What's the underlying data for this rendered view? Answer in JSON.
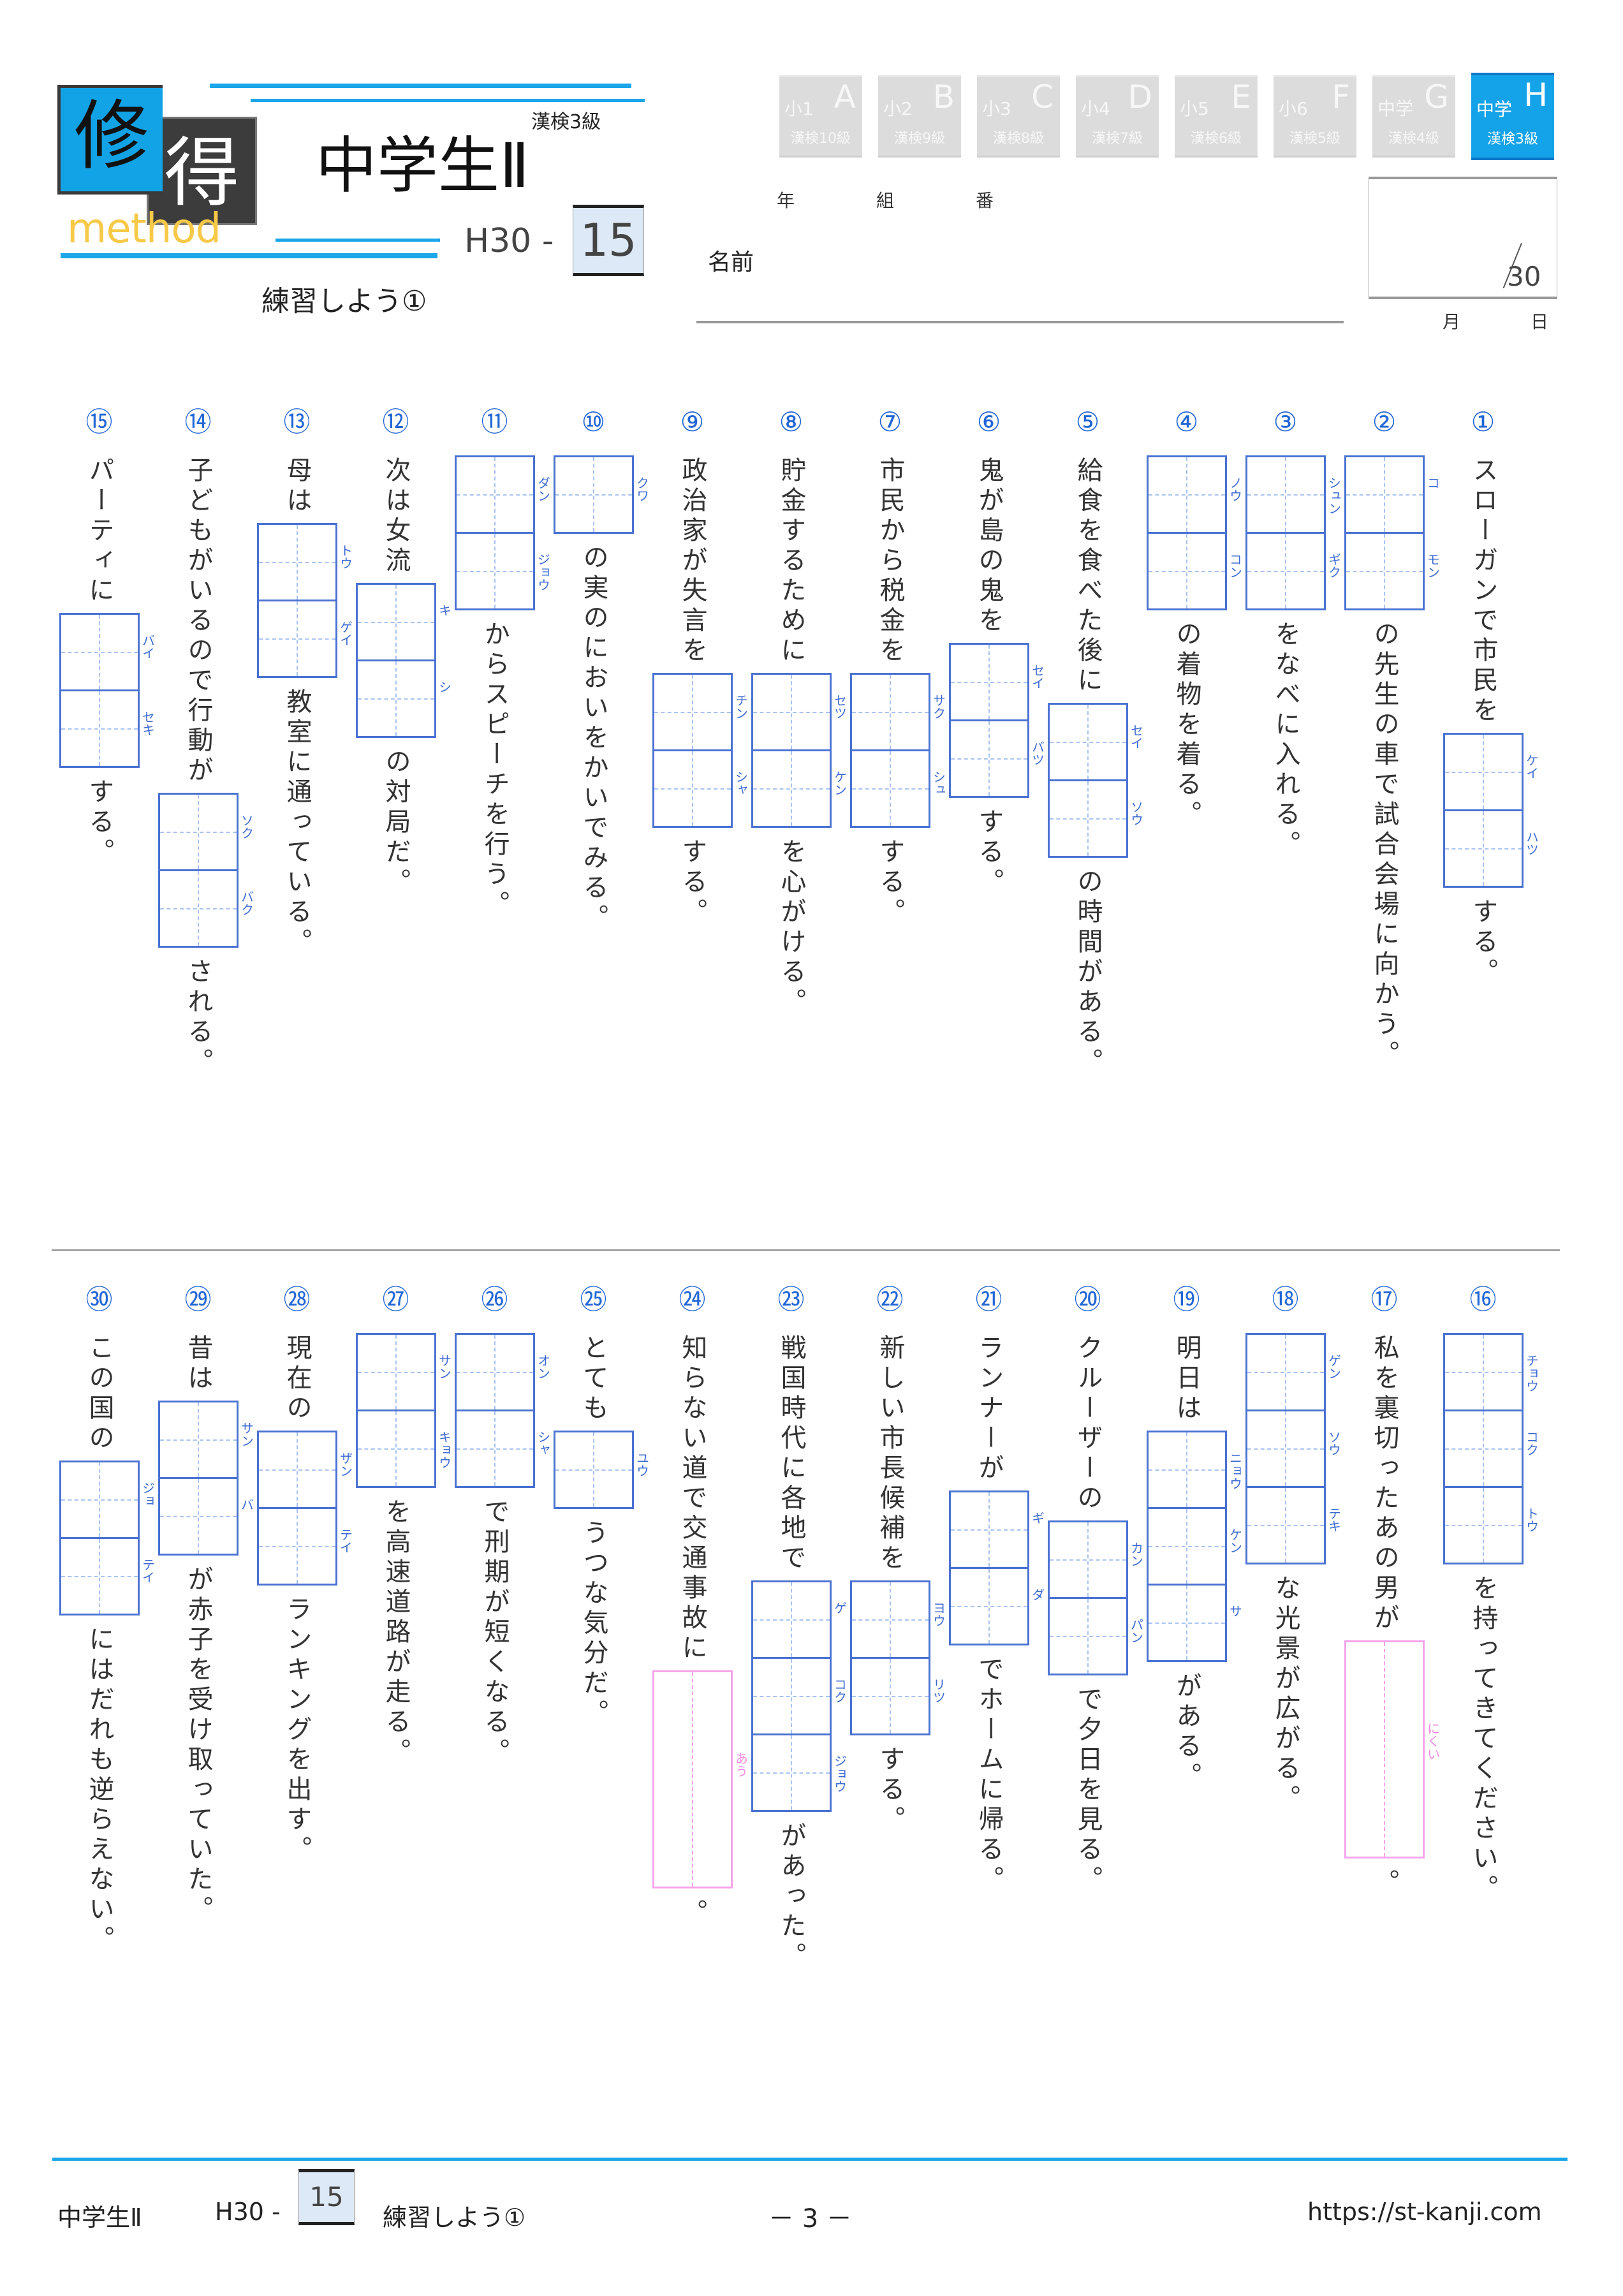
{
  "header": {
    "logo_kanji_1": "修",
    "logo_kanji_2": "得",
    "logo_sub": "method",
    "grade_note": "漢検3級",
    "title": "中学生Ⅱ",
    "series": "H30 -",
    "number": "15",
    "subtitle": "練習しよう①"
  },
  "level_tabs": [
    {
      "grade": "小1",
      "letter": "A",
      "kanken": "漢検10級",
      "active": false
    },
    {
      "grade": "小2",
      "letter": "B",
      "kanken": "漢検9級",
      "active": false
    },
    {
      "grade": "小3",
      "letter": "C",
      "kanken": "漢検8級",
      "active": false
    },
    {
      "grade": "小4",
      "letter": "D",
      "kanken": "漢検7級",
      "active": false
    },
    {
      "grade": "小5",
      "letter": "E",
      "kanken": "漢検6級",
      "active": false
    },
    {
      "grade": "小6",
      "letter": "F",
      "kanken": "漢検5級",
      "active": false
    },
    {
      "grade": "中学",
      "letter": "G",
      "kanken": "漢検4級",
      "active": false
    },
    {
      "grade": "中学",
      "letter": "H",
      "kanken": "漢検3級",
      "active": true
    }
  ],
  "student": {
    "year_label": "年",
    "class_label": "組",
    "number_label": "番",
    "name_label": "名前"
  },
  "score": {
    "total": "30",
    "month_label": "月",
    "day_label": "日"
  },
  "questions": [
    {
      "number": "①",
      "segments": [
        {
          "text": "スローガンで市民を"
        },
        {
          "furigana": [
            "ケイ",
            "ハツ"
          ]
        },
        {
          "text": "する。"
        }
      ]
    },
    {
      "number": "②",
      "segments": [
        {
          "furigana": [
            "コ",
            "モン"
          ]
        },
        {
          "text": "の先生の車で試合会場に向かう。"
        }
      ]
    },
    {
      "number": "③",
      "segments": [
        {
          "furigana": [
            "シュン",
            "ギク"
          ]
        },
        {
          "text": "をなべに入れる。"
        }
      ]
    },
    {
      "number": "④",
      "segments": [
        {
          "furigana": [
            "ノウ",
            "コン"
          ]
        },
        {
          "text": "の着物を着る。"
        }
      ]
    },
    {
      "number": "⑤",
      "segments": [
        {
          "text": "給食を食べた後に"
        },
        {
          "furigana": [
            "セイ",
            "ソウ"
          ]
        },
        {
          "text": "の時間がある。"
        }
      ]
    },
    {
      "number": "⑥",
      "segments": [
        {
          "text": "鬼が島の鬼を"
        },
        {
          "furigana": [
            "セイ",
            "バツ"
          ]
        },
        {
          "text": "する。"
        }
      ]
    },
    {
      "number": "⑦",
      "segments": [
        {
          "text": "市民から税金を"
        },
        {
          "furigana": [
            "サク",
            "シュ"
          ]
        },
        {
          "text": "する。"
        }
      ]
    },
    {
      "number": "⑧",
      "segments": [
        {
          "text": "貯金するために"
        },
        {
          "furigana": [
            "セツ",
            "ケン"
          ]
        },
        {
          "text": "を心がける。"
        }
      ]
    },
    {
      "number": "⑨",
      "segments": [
        {
          "text": "政治家が失言を"
        },
        {
          "furigana": [
            "チン",
            "シャ"
          ]
        },
        {
          "text": "する。"
        }
      ]
    },
    {
      "number": "⑩",
      "segments": [
        {
          "furigana": [
            "クワ"
          ]
        },
        {
          "text": "の実のにおいをかいでみる。"
        }
      ]
    },
    {
      "number": "⑪",
      "segments": [
        {
          "furigana": [
            "ダン",
            "ジョウ"
          ]
        },
        {
          "text": "からスピーチを行う。"
        }
      ]
    },
    {
      "number": "⑫",
      "segments": [
        {
          "text": "次は女流"
        },
        {
          "furigana": [
            "キ",
            "シ"
          ]
        },
        {
          "text": "の対局だ。"
        }
      ]
    },
    {
      "number": "⑬",
      "segments": [
        {
          "text": "母は"
        },
        {
          "furigana": [
            "トウ",
            "ゲイ"
          ]
        },
        {
          "text": "教室に通っている。"
        }
      ]
    },
    {
      "number": "⑭",
      "segments": [
        {
          "text": "子どもがいるので行動が"
        },
        {
          "furigana": [
            "ソク",
            "バク"
          ]
        },
        {
          "text": "される。"
        }
      ]
    },
    {
      "number": "⑮",
      "segments": [
        {
          "text": "パーティに"
        },
        {
          "furigana": [
            "バイ",
            "セキ"
          ]
        },
        {
          "text": "する。"
        }
      ]
    },
    {
      "number": "⑯",
      "segments": [
        {
          "furigana": [
            "チョウ",
            "コク",
            "トウ"
          ]
        },
        {
          "text": "を持ってきてください。"
        }
      ]
    },
    {
      "number": "⑰",
      "segments": [
        {
          "text": "私を裏切ったあの男が"
        },
        {
          "kun": "にくい"
        },
        {
          "text": "。"
        }
      ]
    },
    {
      "number": "⑱",
      "segments": [
        {
          "furigana": [
            "ゲン",
            "ソウ",
            "テキ"
          ]
        },
        {
          "text": "な光景が広がる。"
        }
      ]
    },
    {
      "number": "⑲",
      "segments": [
        {
          "text": "明日は"
        },
        {
          "furigana": [
            "ニョウ",
            "ケン",
            "サ"
          ]
        },
        {
          "text": "がある。"
        }
      ]
    },
    {
      "number": "⑳",
      "segments": [
        {
          "text": "クルーザーの"
        },
        {
          "furigana": [
            "カン",
            "パン"
          ]
        },
        {
          "text": "で夕日を見る。"
        }
      ]
    },
    {
      "number": "㉑",
      "segments": [
        {
          "text": "ランナーが"
        },
        {
          "furigana": [
            "ギ",
            "ダ"
          ]
        },
        {
          "text": "でホームに帰る。"
        }
      ]
    },
    {
      "number": "㉒",
      "segments": [
        {
          "text": "新しい市長候補を"
        },
        {
          "furigana": [
            "ヨウ",
            "リツ"
          ]
        },
        {
          "text": "する。"
        }
      ]
    },
    {
      "number": "㉓",
      "segments": [
        {
          "text": "戦国時代に各地で"
        },
        {
          "furigana": [
            "ゲ",
            "コク",
            "ジョウ"
          ]
        },
        {
          "text": "があった。"
        }
      ]
    },
    {
      "number": "㉔",
      "segments": [
        {
          "text": "知らない道で交通事故に"
        },
        {
          "kun": "あう"
        },
        {
          "text": "。"
        }
      ]
    },
    {
      "number": "㉕",
      "segments": [
        {
          "text": "とても"
        },
        {
          "furigana": [
            "ユウ"
          ]
        },
        {
          "text": "うつな気分だ。"
        }
      ]
    },
    {
      "number": "㉖",
      "segments": [
        {
          "furigana": [
            "オン",
            "シャ"
          ]
        },
        {
          "text": "で刑期が短くなる。"
        }
      ]
    },
    {
      "number": "㉗",
      "segments": [
        {
          "furigana": [
            "サン",
            "キョウ"
          ]
        },
        {
          "text": "を高速道路が走る。"
        }
      ]
    },
    {
      "number": "㉘",
      "segments": [
        {
          "text": "現在の"
        },
        {
          "furigana": [
            "ザン",
            "テイ"
          ]
        },
        {
          "text": "ランキングを出す。"
        }
      ]
    },
    {
      "number": "㉙",
      "segments": [
        {
          "text": "昔は"
        },
        {
          "furigana": [
            "サン",
            "バ"
          ]
        },
        {
          "text": "が赤子を受け取っていた。"
        }
      ]
    },
    {
      "number": "㉚",
      "segments": [
        {
          "text": "この国の"
        },
        {
          "furigana": [
            "ジョ",
            "テイ"
          ]
        },
        {
          "text": "にはだれも逆らえない。"
        }
      ]
    }
  ],
  "footer": {
    "title": "中学生Ⅱ",
    "series": "H30 -",
    "number": "15",
    "subtitle": "練習しよう①",
    "page": "－ 3 －",
    "url": "https://st-kanji.com"
  },
  "colors": {
    "accent_blue": "#1aa6e8",
    "box_blue": "#4a72d2",
    "kun_pink": "#f5a3ea",
    "logo_yellow": "#f7c948",
    "tab_gray": "#dcdcdc"
  }
}
